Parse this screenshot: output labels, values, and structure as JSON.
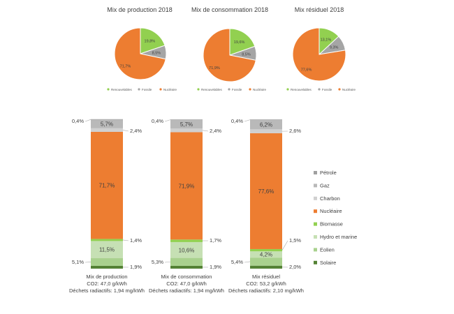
{
  "colors": {
    "renouvelables": "#92d050",
    "fossile": "#a5a5a5",
    "nucleaire": "#ed7d31",
    "petrole": "#a0a0a0",
    "gaz": "#b9b9b9",
    "charbon": "#d0d0d0",
    "biomasse": "#92d050",
    "hydro": "#c6e0b4",
    "eolien": "#a9d18e",
    "solaire": "#548235"
  },
  "chart_data": [
    {
      "type": "pie",
      "title": "Mix de production 2018",
      "slices": [
        {
          "label": "Renouvelables",
          "value": 19.8,
          "text": "19,8%"
        },
        {
          "label": "Fossile",
          "value": 8.5,
          "text": "8,5%"
        },
        {
          "label": "Nucléaire",
          "value": 71.7,
          "text": "71,7%"
        }
      ],
      "legend": [
        "Renouvelables",
        "Fossile",
        "Nucléaire"
      ]
    },
    {
      "type": "pie",
      "title": "Mix de consommation 2018",
      "slices": [
        {
          "label": "Renouvelables",
          "value": 19.6,
          "text": "19,6%"
        },
        {
          "label": "Fossile",
          "value": 8.5,
          "text": "8,5%"
        },
        {
          "label": "Nucléaire",
          "value": 71.9,
          "text": "71,9%"
        }
      ],
      "legend": [
        "Renouvelables",
        "Fossile",
        "Nucléaire"
      ]
    },
    {
      "type": "pie",
      "title": "Mix résiduel 2018",
      "slices": [
        {
          "label": "Renouvelables",
          "value": 13.1,
          "text": "13,1%"
        },
        {
          "label": "Fossile",
          "value": 9.3,
          "text": "9,3%"
        },
        {
          "label": "Nucléaire",
          "value": 77.6,
          "text": "77,6%"
        }
      ],
      "legend": [
        "Renouvelables",
        "Fossile",
        "Nucléaire"
      ]
    },
    {
      "type": "bar",
      "stacked": true,
      "categories": [
        {
          "lines": [
            "Mix de production",
            "CO2: 47,0 g/kWh",
            "Déchets radiactifs: 1,94 mg/kWh"
          ]
        },
        {
          "lines": [
            "Mix de consommation",
            "CO2: 47,0 g/kWh",
            "Déchets radiactifs: 1,94 mg/kWh"
          ]
        },
        {
          "lines": [
            "Mix résiduel",
            "CO2: 53,2 g/kWh",
            "Déchets radiactifs: 2,10 mg/kWh"
          ]
        }
      ],
      "series": [
        {
          "name": "Solaire",
          "key": "solaire",
          "values": [
            1.9,
            1.9,
            2.0
          ],
          "labels": [
            "1,9%",
            "1,9%",
            "2,0%"
          ],
          "label_side": "right"
        },
        {
          "name": "Eolien",
          "key": "eolien",
          "values": [
            5.1,
            5.3,
            5.4
          ],
          "labels": [
            "5,1%",
            "5,3%",
            "5,4%"
          ],
          "label_side": "left"
        },
        {
          "name": "Hydro et marine",
          "key": "hydro",
          "values": [
            11.5,
            10.6,
            4.2
          ],
          "labels": [
            "11,5%",
            "10,6%",
            "4,2%"
          ],
          "label_side": "inside"
        },
        {
          "name": "Biomasse",
          "key": "biomasse",
          "values": [
            1.4,
            1.7,
            1.5
          ],
          "labels": [
            "1,4%",
            "1,7%",
            "1,5%"
          ],
          "label_side": "right"
        },
        {
          "name": "Nucléaire",
          "key": "nucleaire",
          "values": [
            71.7,
            71.9,
            77.6
          ],
          "labels": [
            "71,7%",
            "71,9%",
            "77,6%"
          ],
          "label_side": "inside"
        },
        {
          "name": "Charbon",
          "key": "charbon",
          "values": [
            2.4,
            2.4,
            2.6
          ],
          "labels": [
            "2,4%",
            "2,4%",
            "2,6%"
          ],
          "label_side": "right"
        },
        {
          "name": "Gaz",
          "key": "gaz",
          "values": [
            5.7,
            5.7,
            6.2
          ],
          "labels": [
            "5,7%",
            "5,7%",
            "6,2%"
          ],
          "label_side": "inside"
        },
        {
          "name": "Pétrole",
          "key": "petrole",
          "values": [
            0.4,
            0.4,
            0.4
          ],
          "labels": [
            "0,4%",
            "0,4%",
            "0,4%"
          ],
          "label_side": "left"
        }
      ],
      "legend": [
        "Pétrole",
        "Gaz",
        "Charbon",
        "Nucléaire",
        "Biomasse",
        "Hydro et marine",
        "Eolien",
        "Solaire"
      ],
      "legend_position": "right",
      "ylim": [
        0,
        100
      ]
    }
  ]
}
